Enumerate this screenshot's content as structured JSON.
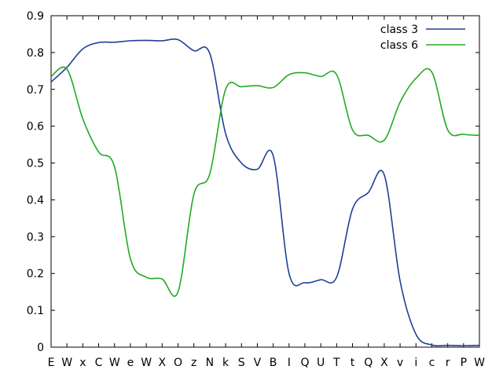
{
  "chart_data": {
    "type": "line",
    "title": "",
    "xlabel": "",
    "ylabel": "",
    "ylim": [
      0,
      0.9
    ],
    "yticks": [
      "0",
      "0.1",
      "0.2",
      "0.3",
      "0.4",
      "0.5",
      "0.6",
      "0.7",
      "0.8",
      "0.9"
    ],
    "categories": [
      "E",
      "W",
      "x",
      "C",
      "W",
      "e",
      "W",
      "X",
      "O",
      "z",
      "N",
      "k",
      "S",
      "V",
      "B",
      "I",
      "Q",
      "U",
      "T",
      "t",
      "Q",
      "X",
      "v",
      "i",
      "c",
      "r",
      "P",
      "W"
    ],
    "legend_position": "top-right",
    "grid": false,
    "series": [
      {
        "name": "class 3",
        "color": "#1f3f99",
        "values": [
          0.72,
          0.76,
          0.81,
          0.827,
          0.828,
          0.832,
          0.833,
          0.832,
          0.835,
          0.805,
          0.798,
          0.58,
          0.5,
          0.483,
          0.52,
          0.2,
          0.175,
          0.183,
          0.19,
          0.375,
          0.42,
          0.468,
          0.18,
          0.035,
          0.006,
          0.005,
          0.004,
          0.005
        ]
      },
      {
        "name": "class 6",
        "color": "#22aa22",
        "values": [
          0.735,
          0.755,
          0.62,
          0.53,
          0.49,
          0.24,
          0.19,
          0.185,
          0.15,
          0.415,
          0.47,
          0.7,
          0.707,
          0.71,
          0.705,
          0.74,
          0.745,
          0.735,
          0.74,
          0.59,
          0.575,
          0.562,
          0.665,
          0.73,
          0.747,
          0.59,
          0.578,
          0.575
        ]
      }
    ]
  }
}
